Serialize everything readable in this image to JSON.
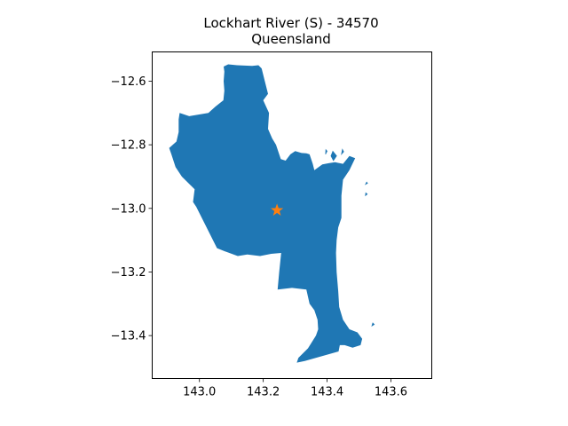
{
  "chart_data": {
    "type": "map",
    "title_line1": "Lockhart River (S) - 34570",
    "title_line2": "Queensland",
    "xlabel": "",
    "ylabel": "",
    "xlim": [
      142.852,
      143.728
    ],
    "ylim": [
      -13.535,
      -12.508
    ],
    "x_ticks": [
      {
        "value": 143.0,
        "label": "143.0"
      },
      {
        "value": 143.2,
        "label": "143.2"
      },
      {
        "value": 143.4,
        "label": "143.4"
      },
      {
        "value": 143.6,
        "label": "143.6"
      }
    ],
    "y_ticks": [
      {
        "value": -12.6,
        "label": "−12.6"
      },
      {
        "value": -12.8,
        "label": "−12.8"
      },
      {
        "value": -13.0,
        "label": "−13.0"
      },
      {
        "value": -13.2,
        "label": "−13.2"
      },
      {
        "value": -13.4,
        "label": "−13.4"
      }
    ],
    "region_color": "#1f77b4",
    "marker_color": "#ff7f0e",
    "marker": {
      "lon": 143.243,
      "lat": -13.006
    },
    "boundary": [
      [
        143.076,
        -12.554
      ],
      [
        143.09,
        -12.547
      ],
      [
        143.118,
        -12.55
      ],
      [
        143.165,
        -12.552
      ],
      [
        143.185,
        -12.55
      ],
      [
        143.195,
        -12.56
      ],
      [
        143.205,
        -12.6
      ],
      [
        143.215,
        -12.64
      ],
      [
        143.2,
        -12.66
      ],
      [
        143.218,
        -12.7
      ],
      [
        143.215,
        -12.75
      ],
      [
        143.228,
        -12.78
      ],
      [
        143.24,
        -12.8
      ],
      [
        143.255,
        -12.845
      ],
      [
        143.27,
        -12.85
      ],
      [
        143.285,
        -12.83
      ],
      [
        143.3,
        -12.82
      ],
      [
        143.32,
        -12.826
      ],
      [
        143.335,
        -12.827
      ],
      [
        143.345,
        -12.83
      ],
      [
        143.355,
        -12.86
      ],
      [
        143.36,
        -12.88
      ],
      [
        143.385,
        -12.862
      ],
      [
        143.405,
        -12.858
      ],
      [
        143.425,
        -12.855
      ],
      [
        143.45,
        -12.86
      ],
      [
        143.47,
        -12.835
      ],
      [
        143.488,
        -12.842
      ],
      [
        143.47,
        -12.88
      ],
      [
        143.45,
        -12.91
      ],
      [
        143.445,
        -12.96
      ],
      [
        143.445,
        -13.03
      ],
      [
        143.435,
        -13.06
      ],
      [
        143.43,
        -13.1
      ],
      [
        143.428,
        -13.14
      ],
      [
        143.43,
        -13.2
      ],
      [
        143.435,
        -13.26
      ],
      [
        143.438,
        -13.31
      ],
      [
        143.45,
        -13.35
      ],
      [
        143.47,
        -13.38
      ],
      [
        143.495,
        -13.39
      ],
      [
        143.51,
        -13.41
      ],
      [
        143.505,
        -13.43
      ],
      [
        143.48,
        -13.438
      ],
      [
        143.455,
        -13.43
      ],
      [
        143.44,
        -13.43
      ],
      [
        143.436,
        -13.45
      ],
      [
        143.33,
        -13.48
      ],
      [
        143.305,
        -13.485
      ],
      [
        143.31,
        -13.47
      ],
      [
        143.34,
        -13.44
      ],
      [
        143.365,
        -13.4
      ],
      [
        143.372,
        -13.38
      ],
      [
        143.37,
        -13.35
      ],
      [
        143.36,
        -13.32
      ],
      [
        143.345,
        -13.3
      ],
      [
        143.335,
        -13.255
      ],
      [
        143.29,
        -13.25
      ],
      [
        143.245,
        -13.255
      ],
      [
        143.25,
        -13.2
      ],
      [
        143.256,
        -13.14
      ],
      [
        143.225,
        -13.143
      ],
      [
        143.19,
        -13.15
      ],
      [
        143.15,
        -13.145
      ],
      [
        143.12,
        -13.15
      ],
      [
        143.08,
        -13.135
      ],
      [
        143.055,
        -13.125
      ],
      [
        142.99,
        -12.995
      ],
      [
        142.98,
        -12.98
      ],
      [
        142.985,
        -12.94
      ],
      [
        142.945,
        -12.9
      ],
      [
        142.925,
        -12.87
      ],
      [
        142.912,
        -12.83
      ],
      [
        142.905,
        -12.81
      ],
      [
        142.928,
        -12.79
      ],
      [
        142.935,
        -12.76
      ],
      [
        142.935,
        -12.72
      ],
      [
        142.938,
        -12.7
      ],
      [
        142.968,
        -12.71
      ],
      [
        143.028,
        -12.7
      ],
      [
        143.05,
        -12.68
      ],
      [
        143.075,
        -12.66
      ],
      [
        143.078,
        -12.63
      ],
      [
        143.076,
        -12.6
      ],
      [
        143.078,
        -12.57
      ]
    ],
    "islands": [
      [
        [
          143.42,
          -12.85
        ],
        [
          143.43,
          -12.835
        ],
        [
          143.418,
          -12.82
        ],
        [
          143.412,
          -12.835
        ]
      ],
      [
        [
          143.445,
          -12.83
        ],
        [
          143.452,
          -12.822
        ],
        [
          143.448,
          -12.814
        ]
      ],
      [
        [
          143.52,
          -12.925
        ],
        [
          143.527,
          -12.921
        ],
        [
          143.524,
          -12.917
        ]
      ],
      [
        [
          143.52,
          -12.96
        ],
        [
          143.526,
          -12.955
        ],
        [
          143.521,
          -12.951
        ]
      ],
      [
        [
          143.54,
          -13.37
        ],
        [
          143.548,
          -13.365
        ],
        [
          143.543,
          -13.36
        ]
      ],
      [
        [
          143.395,
          -12.83
        ],
        [
          143.4,
          -12.82
        ],
        [
          143.396,
          -12.815
        ]
      ]
    ]
  }
}
